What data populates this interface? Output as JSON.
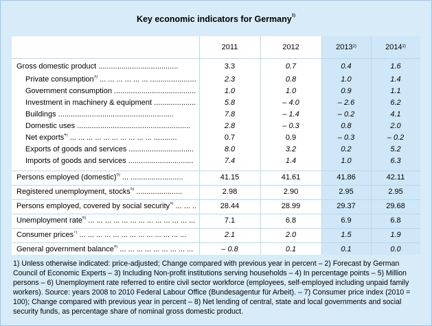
{
  "title": "Key economic indicators for Germany",
  "title_note": "1)",
  "columns": [
    {
      "label": "2011",
      "note": ""
    },
    {
      "label": "2012",
      "note": ""
    },
    {
      "label": "2013",
      "note": "2)"
    },
    {
      "label": "2014",
      "note": "2)"
    }
  ],
  "rows": [
    {
      "label": "Gross domestic product",
      "note": "",
      "dots": " ......................................",
      "indent": false,
      "values": [
        "3.3",
        "0.7",
        "0.4",
        "1.6"
      ],
      "italic": [
        false,
        true,
        true,
        true
      ]
    },
    {
      "label": "Private consumption",
      "note": "3)",
      "dots": " ... ... ... ... ... ... ........................",
      "indent": true,
      "values": [
        "2.3",
        "0.8",
        "1.0",
        "1.4"
      ],
      "italic": [
        true,
        true,
        true,
        true
      ]
    },
    {
      "label": "Government consumption",
      "note": "",
      "dots": " .......................................",
      "indent": true,
      "values": [
        "1.0",
        "1.0",
        "0.9",
        "1.1"
      ],
      "italic": [
        true,
        true,
        true,
        true
      ]
    },
    {
      "label": "Investment in machinery & equipment",
      "note": "",
      "dots": " ....................",
      "indent": true,
      "values": [
        "5.8",
        "– 4.0",
        "– 2.6",
        "6.2"
      ],
      "italic": [
        true,
        true,
        true,
        true
      ]
    },
    {
      "label": "Buildings",
      "note": "",
      "dots": " .......................................................",
      "indent": true,
      "values": [
        "7.8",
        "– 1.4",
        "– 0.2",
        "4.1"
      ],
      "italic": [
        true,
        true,
        true,
        true
      ]
    },
    {
      "label": "Domestic uses",
      "note": "",
      "dots": " ......................................................",
      "indent": true,
      "values": [
        "2.8",
        "– 0.3",
        "0.8",
        "2.0"
      ],
      "italic": [
        true,
        true,
        true,
        true
      ]
    },
    {
      "label": "Net exports",
      "note": "4)",
      "dots": " ... ... ... ... ... ... ... ... ... ... ...........",
      "indent": true,
      "values": [
        "0.7",
        "0.9",
        "– 0.3",
        "– 0.2"
      ],
      "italic": [
        false,
        false,
        true,
        true
      ]
    },
    {
      "label": "Exports of goods and services",
      "note": "",
      "dots": " ...............................",
      "indent": true,
      "values": [
        "8.0",
        "3.2",
        "0.2",
        "5.2"
      ],
      "italic": [
        true,
        true,
        true,
        true
      ]
    },
    {
      "label": "Imports of goods and services",
      "note": "",
      "dots": " ...............................",
      "indent": true,
      "values": [
        "7.4",
        "1.4",
        "1.0",
        "6.3"
      ],
      "italic": [
        true,
        true,
        true,
        true
      ]
    },
    {
      "label": "Persons employed (domestic)",
      "note": "5)",
      "dots": " ... .........................",
      "indent": false,
      "values": [
        "41.15",
        "41.61",
        "41.86",
        "42.11"
      ],
      "italic": [
        false,
        false,
        false,
        false
      ]
    },
    {
      "label": "Registered unemployment, stocks",
      "note": "5)",
      "dots": " ......................",
      "indent": false,
      "values": [
        "2.98",
        "2.90",
        "2.95",
        "2.95"
      ],
      "italic": [
        false,
        false,
        false,
        false
      ]
    },
    {
      "label": "Persons employed, covered by social security",
      "note": "5)",
      "dots": " ... ... ...",
      "indent": false,
      "values": [
        "28.44",
        "28.99",
        "29.37",
        "29.68"
      ],
      "italic": [
        false,
        false,
        false,
        false
      ]
    },
    {
      "label": "Unemployment rate",
      "note": "6)",
      "dots": " ... ... ... ... ... ... ... ... ... ... ... ... ...",
      "indent": false,
      "values": [
        "7.1",
        "6.8",
        "6.9",
        "6.8"
      ],
      "italic": [
        false,
        false,
        false,
        false
      ]
    },
    {
      "label": "Consumer prices",
      "note": "7)",
      "dots": " ... ... ... ... ... ... ... ... ... ... ... ... ...",
      "indent": false,
      "values": [
        "2.1",
        "2.0",
        "1.5",
        "1.9"
      ],
      "italic": [
        true,
        true,
        true,
        true
      ]
    },
    {
      "label": "General government balance",
      "note": "8)",
      "dots": " ... ... ... ... ... ... ... ... ...",
      "indent": false,
      "values": [
        "– 0.8",
        "0.1",
        "0.1",
        "0.0"
      ],
      "italic": [
        true,
        true,
        true,
        true
      ]
    }
  ],
  "footnotes": "1) Unless otherwise indicated: price-adjusted; Change compared with previous year in percent – 2) Forecast by German Council of Economic Experts – 3) Including Non-profit institutions serving households – 4) In percentage points – 5) Million persons – 6) Unemployment rate referred to entire civil sector workforce (employees, self-employed including unpaid family workers). Source: years 2008 to 2010 Federal Labour Office (Bundesagentur für Arbeit). – 7) Consumer price index (2010 = 100); Change compared with previous year in percent – 8) Net lending of central, state and local governments and social security funds, as percentage share of nominal gross domestic product.",
  "colors": {
    "background": "#d8ebf8",
    "forecast_shade": "#cfe7f8",
    "grid": "#b9d7ee"
  }
}
